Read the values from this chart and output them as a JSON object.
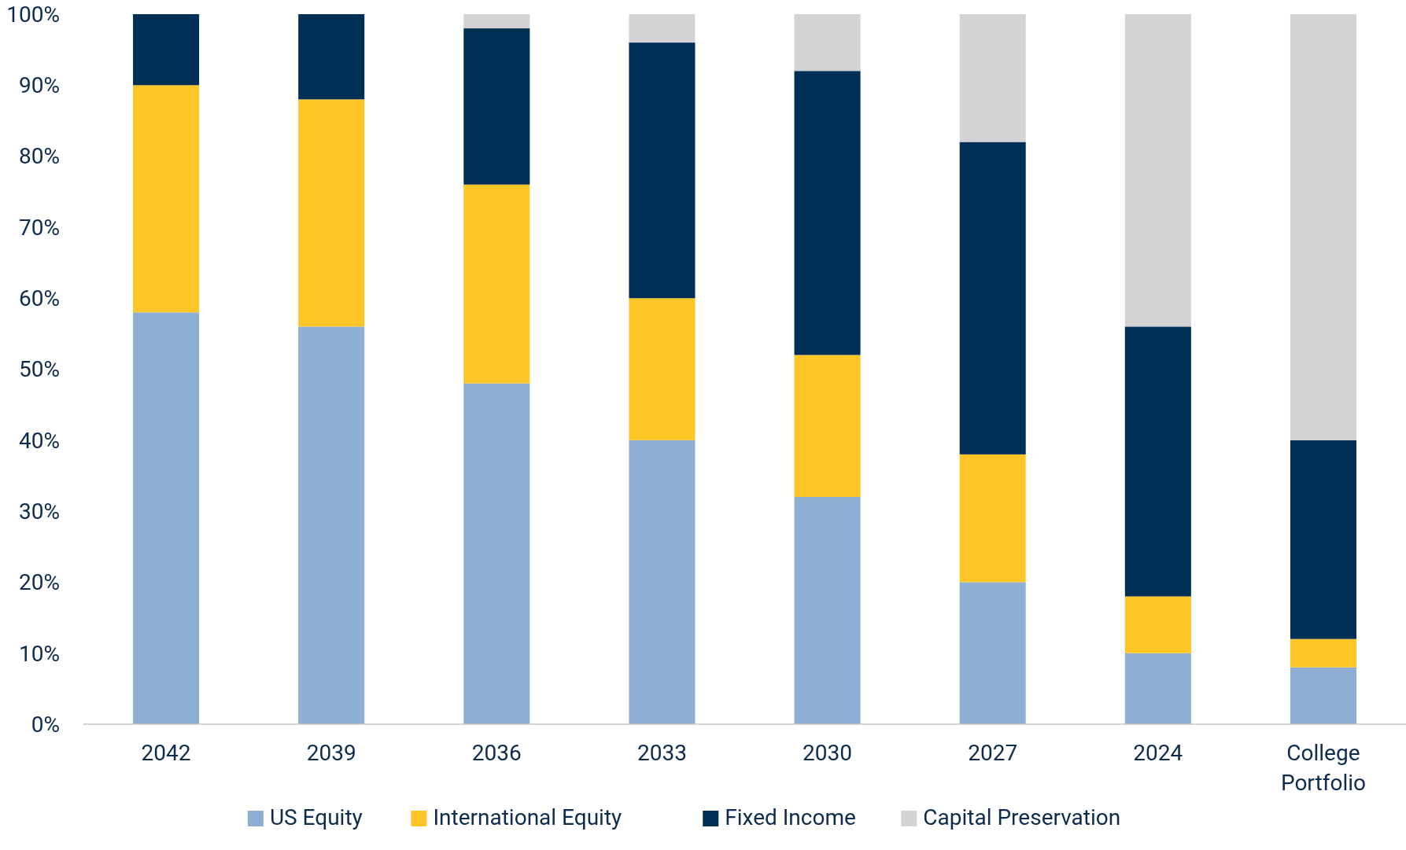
{
  "chart_data": {
    "type": "bar",
    "stacked": true,
    "categories": [
      "2042",
      "2039",
      "2036",
      "2033",
      "2030",
      "2027",
      "2024",
      "College Portfolio"
    ],
    "series": [
      {
        "name": "US Equity",
        "color": "#8cafd3",
        "values": [
          58,
          56,
          48,
          40,
          32,
          20,
          10,
          8
        ]
      },
      {
        "name": "International Equity",
        "color": "#fec527",
        "values": [
          32,
          32,
          28,
          20,
          20,
          18,
          8,
          4
        ]
      },
      {
        "name": "Fixed Income",
        "color": "#002f56",
        "values": [
          10,
          12,
          22,
          36,
          40,
          44,
          38,
          28
        ]
      },
      {
        "name": "Capital Preservation",
        "color": "#d3d3d5",
        "values": [
          0,
          0,
          2,
          4,
          8,
          18,
          44,
          60
        ]
      }
    ],
    "ylim": [
      0,
      100
    ],
    "yticks": [
      {
        "value": 0,
        "label": "0%"
      },
      {
        "value": 10,
        "label": "10%"
      },
      {
        "value": 20,
        "label": "20%"
      },
      {
        "value": 30,
        "label": "30%"
      },
      {
        "value": 40,
        "label": "40%"
      },
      {
        "value": 50,
        "label": "50%"
      },
      {
        "value": 60,
        "label": "60%"
      },
      {
        "value": 70,
        "label": "70%"
      },
      {
        "value": 80,
        "label": "80%"
      },
      {
        "value": 90,
        "label": "90%"
      },
      {
        "value": 100,
        "label": "100%"
      }
    ],
    "grid": false,
    "legend": "bottom"
  }
}
